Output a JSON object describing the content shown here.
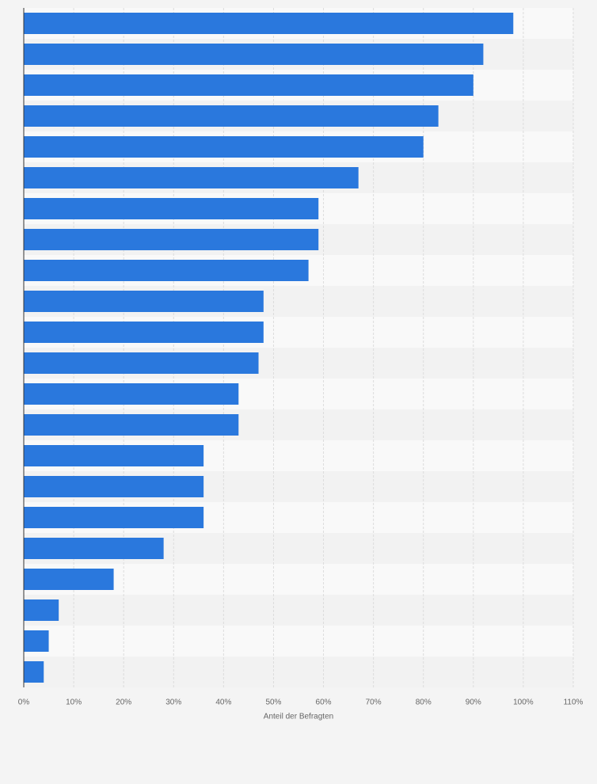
{
  "chart_data": {
    "type": "hbar",
    "categories": [
      null,
      null,
      null,
      null,
      null,
      null,
      null,
      null,
      null,
      null,
      null,
      null,
      null,
      null,
      null,
      null,
      null,
      null,
      null,
      null,
      null,
      null
    ],
    "values": [
      98,
      92,
      90,
      83,
      80,
      67,
      59,
      59,
      57,
      48,
      48,
      47,
      43,
      43,
      36,
      36,
      36,
      28,
      18,
      7,
      5,
      4
    ],
    "color": "#2a78dd",
    "x_label": "Anteil der Befragten",
    "xlim": [
      0,
      110
    ],
    "xticks": [
      {
        "value": 0,
        "label": "0%"
      },
      {
        "value": 10,
        "label": "10%"
      },
      {
        "value": 20,
        "label": "20%"
      },
      {
        "value": 30,
        "label": "30%"
      },
      {
        "value": 40,
        "label": "40%"
      },
      {
        "value": 50,
        "label": "50%"
      },
      {
        "value": 60,
        "label": "60%"
      },
      {
        "value": 70,
        "label": "70%"
      },
      {
        "value": 80,
        "label": "80%"
      },
      {
        "value": 90,
        "label": "90%"
      },
      {
        "value": 100,
        "label": "100%"
      },
      {
        "value": 110,
        "label": "110%"
      }
    ],
    "grid": true
  }
}
